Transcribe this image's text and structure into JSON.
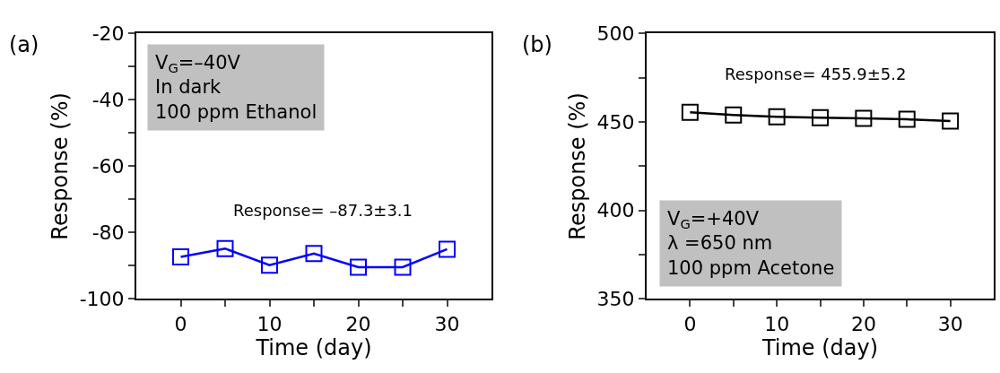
{
  "chart_data": [
    {
      "type": "line",
      "xlabel": "Time (day)",
      "ylabel": "Response (%)",
      "x": [
        0,
        5,
        10,
        15,
        20,
        25,
        30
      ],
      "series": [
        {
          "color": "#0000ff",
          "values": [
            -87.3,
            -84.8,
            -89.8,
            -86.3,
            -90.4,
            -90.4,
            -85.0
          ]
        }
      ],
      "xlim": [
        -5,
        35
      ],
      "xticks": [
        0,
        {
          "value": 5,
          "label": null
        },
        10,
        {
          "value": 15,
          "label": null
        },
        20,
        {
          "value": 25,
          "label": null
        },
        30
      ],
      "ylim": [
        -100,
        -20
      ],
      "yticks": [
        -100,
        {
          "value": -90,
          "label": null
        },
        -80,
        {
          "value": -70,
          "label": null
        },
        -60,
        {
          "value": -50,
          "label": null
        },
        -40,
        {
          "value": -30,
          "label": null
        },
        -20
      ],
      "marker": "square",
      "line_style": "solid",
      "annotations": [
        "(a)",
        "V$_{G}$=–40V\nIn dark\n100 ppm Ethanol",
        "Response= –87.3±3.1"
      ]
    },
    {
      "type": "line",
      "xlabel": "Time (day)",
      "ylabel": "Response (%)",
      "x": [
        0,
        5,
        10,
        15,
        20,
        25,
        30
      ],
      "series": [
        {
          "color": "#000000",
          "values": [
            455.5,
            454.0,
            453.0,
            452.5,
            452.0,
            451.5,
            450.5
          ]
        }
      ],
      "xlim": [
        -5,
        35
      ],
      "xticks": [
        0,
        {
          "value": 5,
          "label": null
        },
        10,
        {
          "value": 15,
          "label": null
        },
        20,
        {
          "value": 25,
          "label": null
        },
        30
      ],
      "ylim": [
        350,
        500
      ],
      "yticks": [
        350,
        {
          "value": 375,
          "label": null
        },
        400,
        {
          "value": 425,
          "label": null
        },
        450,
        {
          "value": 475,
          "label": null
        },
        500
      ],
      "marker": "square",
      "line_style": "solid",
      "annotations": [
        "(b)",
        "V$_{G}$=+40V\nλ =650 nm\n100 ppm Acetone",
        "Response= 455.9±5.2"
      ]
    }
  ]
}
